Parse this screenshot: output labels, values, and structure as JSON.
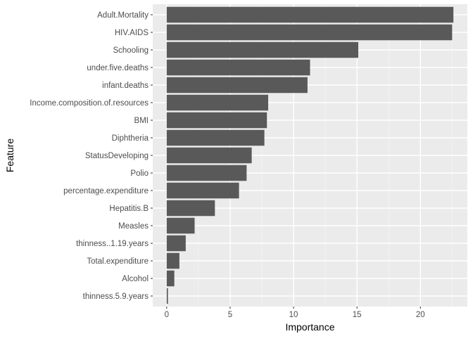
{
  "chart_data": {
    "type": "bar",
    "orientation": "horizontal",
    "title": "",
    "xlabel": "Importance",
    "ylabel": "Feature",
    "xlim": [
      -1.1,
      23.7
    ],
    "x_ticks": [
      0,
      5,
      10,
      15,
      20
    ],
    "grid": true,
    "legend": "none",
    "categories": [
      "Adult.Mortality",
      "HIV.AIDS",
      "Schooling",
      "under.five.deaths",
      "infant.deaths",
      "Income.composition.of.resources",
      "BMI",
      "Diphtheria",
      "StatusDeveloping",
      "Polio",
      "percentage.expenditure",
      "Hepatitis.B",
      "Measles",
      "thinness..1.19.years",
      "Total.expenditure",
      "Alcohol",
      "thinness.5.9.years"
    ],
    "values": [
      22.6,
      22.5,
      15.1,
      11.3,
      11.1,
      8.0,
      7.9,
      7.7,
      6.7,
      6.3,
      5.7,
      3.8,
      2.2,
      1.5,
      1.0,
      0.6,
      0.1
    ],
    "colors": {
      "bar": "#595959",
      "panel": "#ebebeb",
      "grid_major": "#ffffff",
      "grid_minor": "#f5f5f5",
      "tick": "#333333"
    }
  }
}
